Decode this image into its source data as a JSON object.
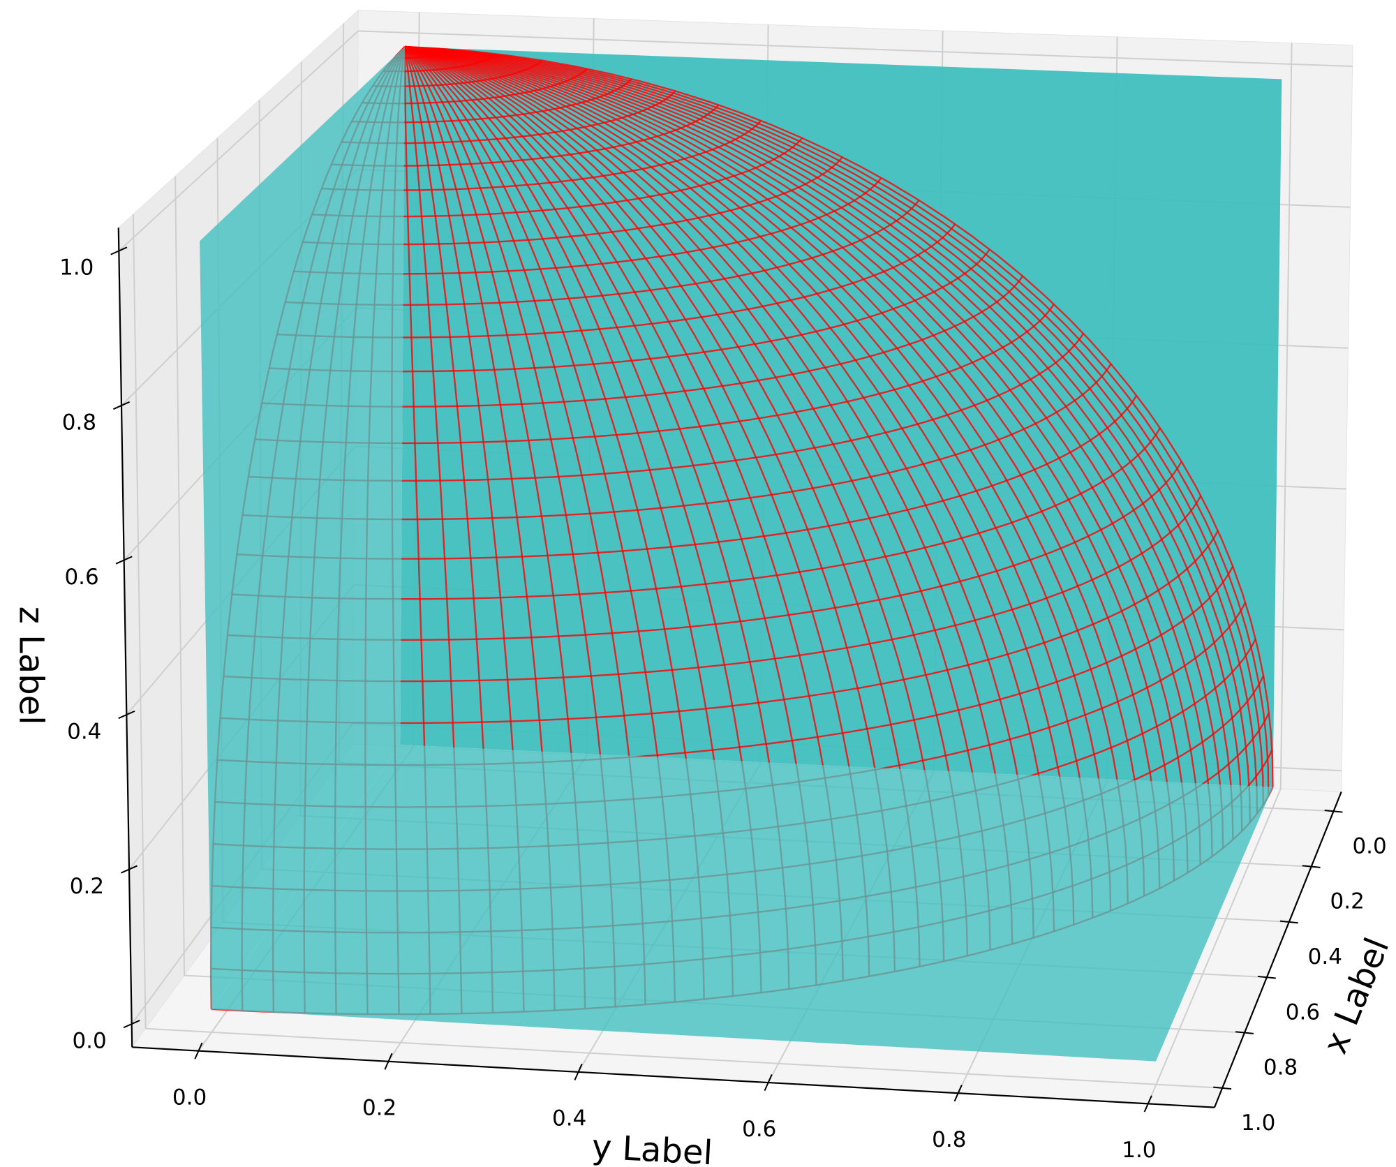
{
  "chart_data": {
    "type": "surface3d",
    "xlabel": "x Label",
    "ylabel": "y Label",
    "zlabel": "z Label",
    "xlim": [
      -0.07,
      1.07
    ],
    "ylim": [
      -0.07,
      1.07
    ],
    "zlim": [
      -0.03,
      1.03
    ],
    "xticks": [
      {
        "value": 0,
        "label": "0.0"
      },
      0.2,
      0.4,
      0.6,
      0.8,
      {
        "value": 1,
        "label": "1.0"
      }
    ],
    "yticks": [
      {
        "value": 0,
        "label": "0.0"
      },
      0.2,
      0.4,
      0.6,
      0.8,
      {
        "value": 1,
        "label": "1.0"
      }
    ],
    "zticks": [
      {
        "value": 0,
        "label": "0.0"
      },
      0.2,
      0.4,
      0.6,
      0.8,
      {
        "value": 1,
        "label": "1.0"
      }
    ],
    "grid": true,
    "color": "#40bfbf",
    "edgecolor": "#ff0000"
  }
}
